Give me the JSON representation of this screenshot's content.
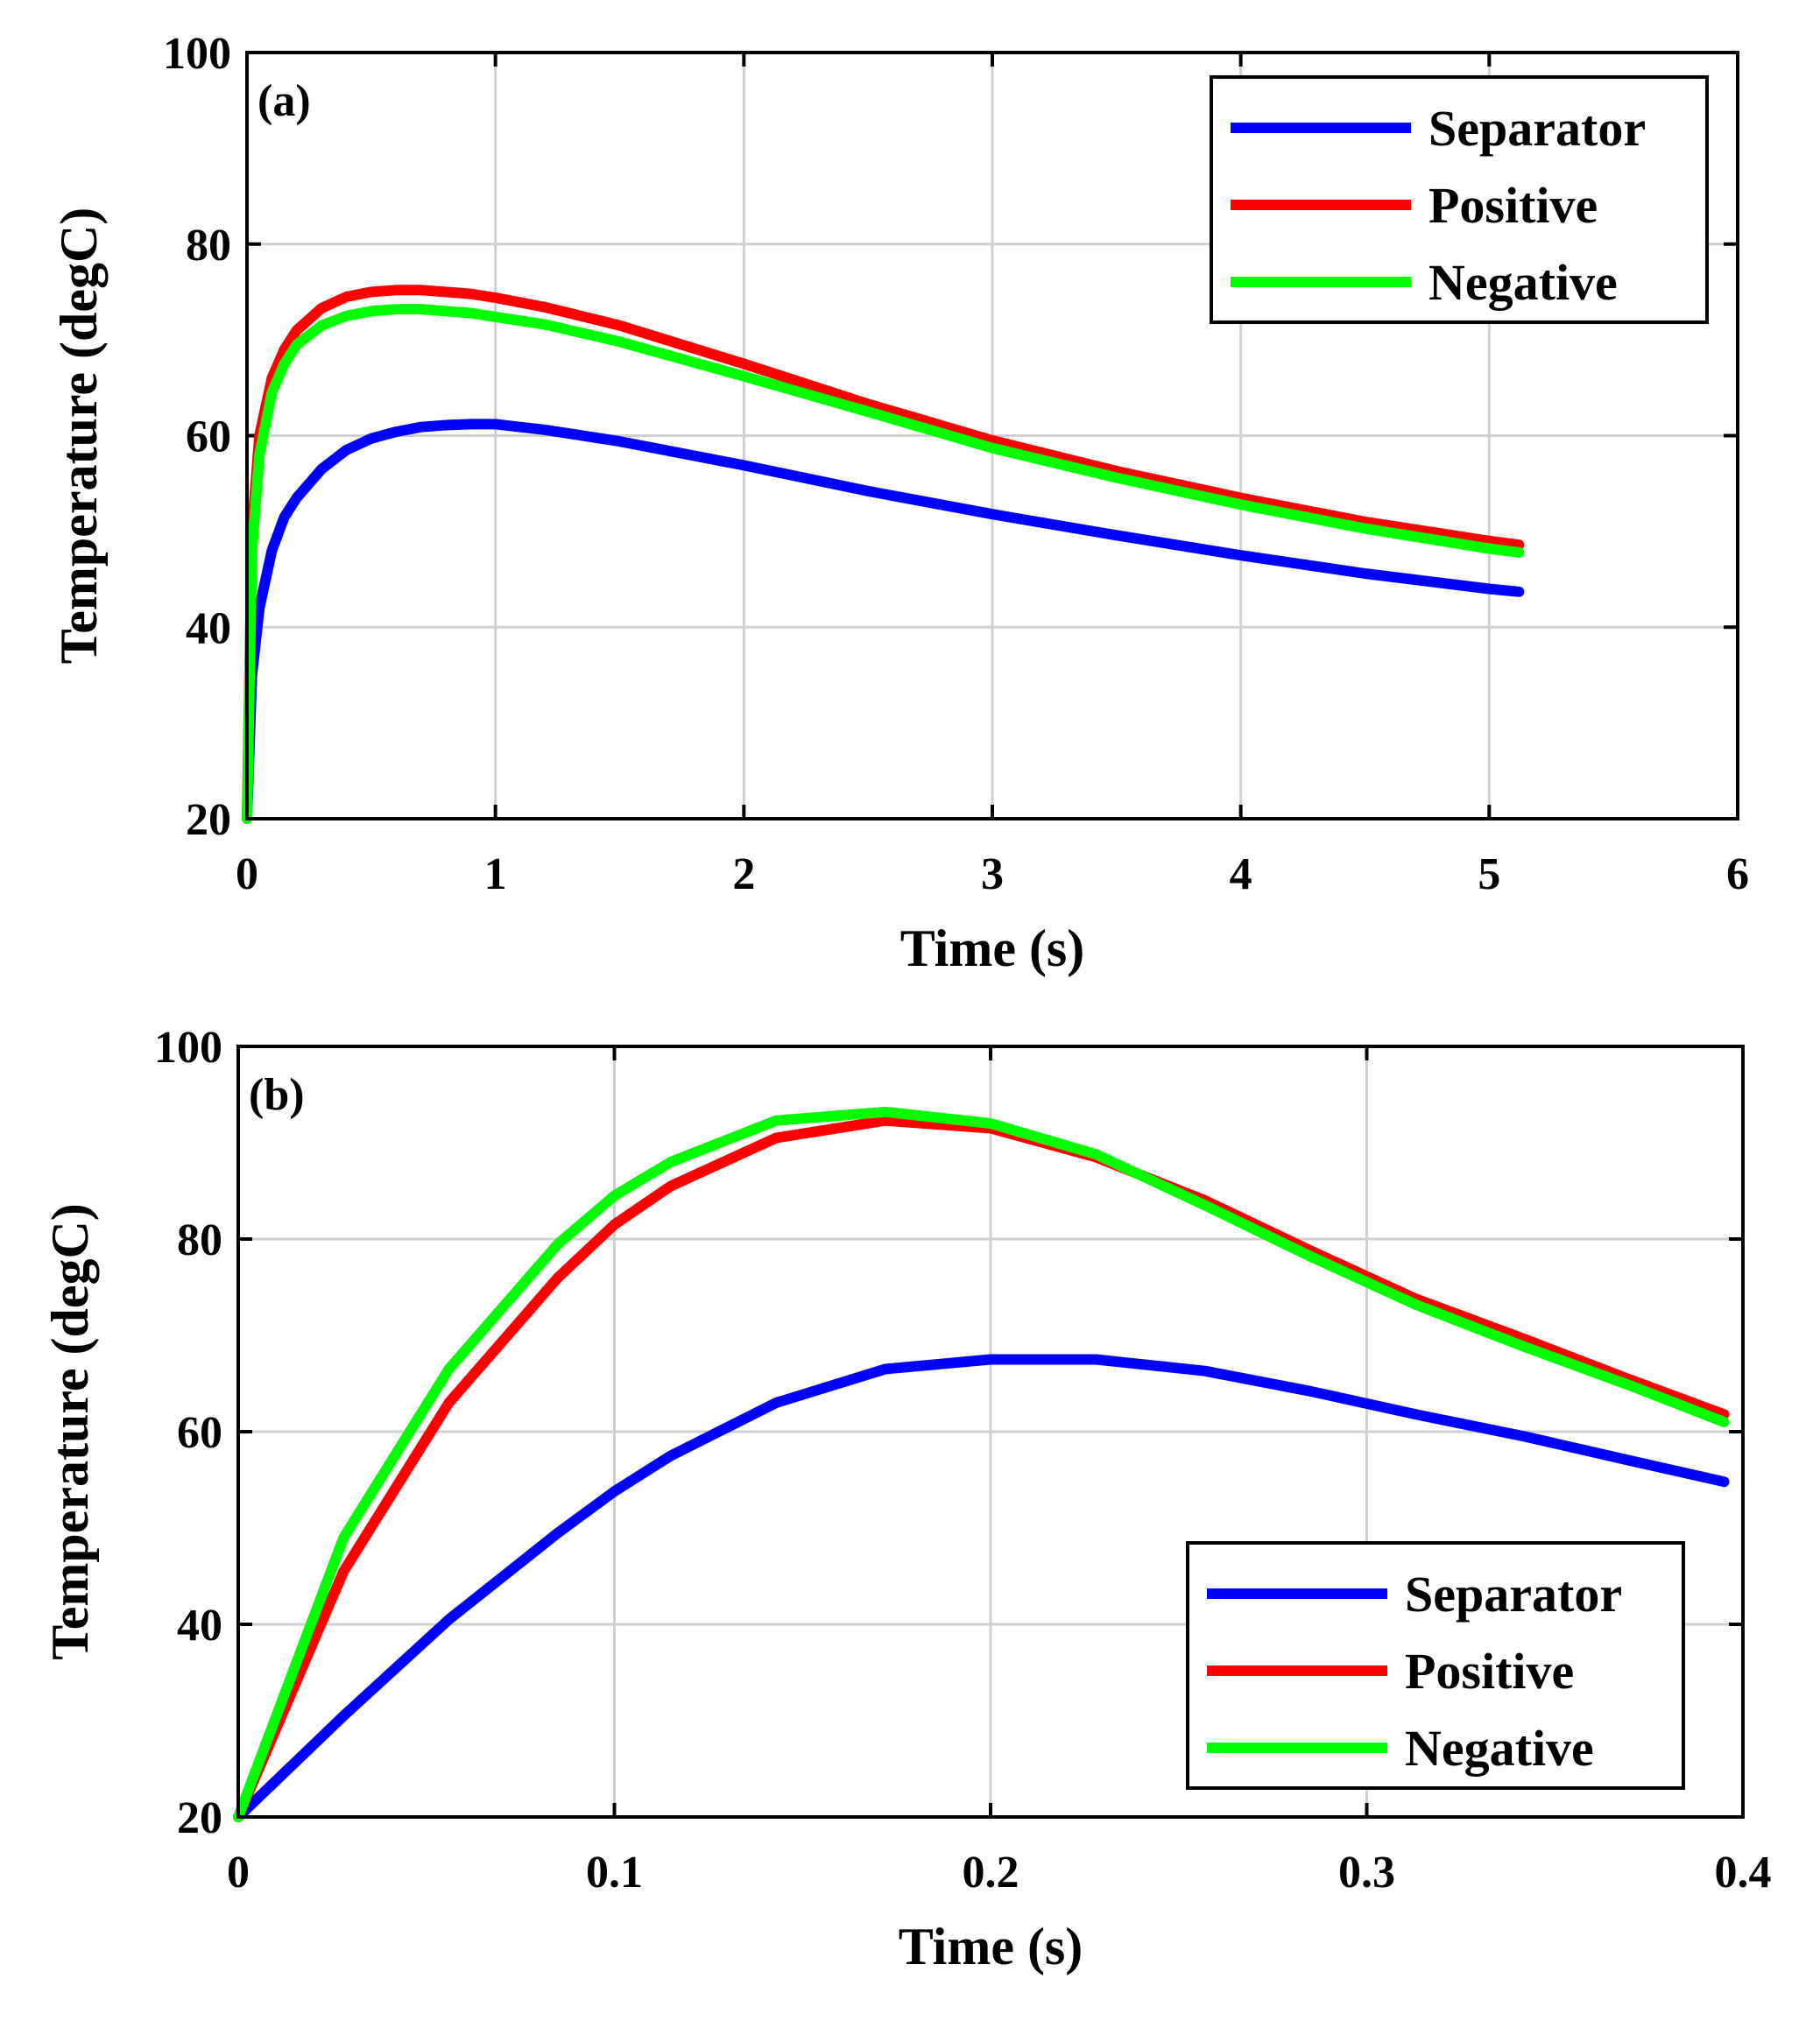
{
  "chart_data": [
    {
      "type": "line",
      "panel_label": "(a)",
      "xlabel": "Time (s)",
      "ylabel": "Temperature (degC)",
      "xlim": [
        0,
        6
      ],
      "ylim": [
        20,
        100
      ],
      "xticks": [
        0,
        1,
        2,
        3,
        4,
        5,
        6
      ],
      "xtick_labels": [
        "0",
        "1",
        "2",
        "3",
        "4",
        "5",
        "6"
      ],
      "yticks": [
        20,
        40,
        60,
        80,
        100
      ],
      "ytick_labels": [
        "20",
        "40",
        "60",
        "80",
        "100"
      ],
      "grid": true,
      "legend_position": "top-right",
      "series": [
        {
          "name": "Separator",
          "color": "#0000ff",
          "x": [
            0,
            0.02,
            0.05,
            0.1,
            0.15,
            0.2,
            0.3,
            0.4,
            0.5,
            0.6,
            0.7,
            0.8,
            0.9,
            1.0,
            1.2,
            1.5,
            2.0,
            2.5,
            3.0,
            3.5,
            4.0,
            4.5,
            5.0,
            5.12
          ],
          "y": [
            20,
            35,
            42,
            48,
            51.5,
            53.5,
            56.5,
            58.5,
            59.7,
            60.4,
            60.9,
            61.1,
            61.2,
            61.2,
            60.6,
            59.4,
            56.9,
            54.2,
            51.8,
            49.6,
            47.5,
            45.6,
            44.0,
            43.7
          ]
        },
        {
          "name": "Positive",
          "color": "#ff0000",
          "x": [
            0,
            0.02,
            0.05,
            0.1,
            0.15,
            0.2,
            0.3,
            0.4,
            0.5,
            0.6,
            0.7,
            0.8,
            0.9,
            1.0,
            1.2,
            1.5,
            2.0,
            2.5,
            3.0,
            3.5,
            4.0,
            4.5,
            5.0,
            5.12
          ],
          "y": [
            20,
            50,
            60,
            66,
            69,
            71,
            73.3,
            74.5,
            75,
            75.2,
            75.2,
            75,
            74.8,
            74.4,
            73.4,
            71.5,
            67.5,
            63.3,
            59.5,
            56.3,
            53.5,
            51.0,
            49.0,
            48.6
          ]
        },
        {
          "name": "Negative",
          "color": "#00ff00",
          "x": [
            0,
            0.02,
            0.05,
            0.1,
            0.15,
            0.2,
            0.3,
            0.4,
            0.5,
            0.6,
            0.7,
            0.8,
            0.9,
            1.0,
            1.2,
            1.5,
            2.0,
            2.5,
            3.0,
            3.5,
            4.0,
            4.5,
            5.0,
            5.12
          ],
          "y": [
            20,
            48,
            58,
            64.5,
            67.5,
            69.5,
            71.5,
            72.5,
            73,
            73.2,
            73.2,
            73,
            72.8,
            72.4,
            71.6,
            69.8,
            66.2,
            62.5,
            58.7,
            55.6,
            52.8,
            50.3,
            48.2,
            47.8
          ]
        }
      ]
    },
    {
      "type": "line",
      "panel_label": "(b)",
      "xlabel": "Time (s)",
      "ylabel": "Temperature (degC)",
      "xlim": [
        0,
        0.4
      ],
      "ylim": [
        20,
        100
      ],
      "xticks": [
        0,
        0.1,
        0.2,
        0.3,
        0.4
      ],
      "xtick_labels": [
        "0",
        "0.1",
        "0.2",
        "0.3",
        "0.4"
      ],
      "yticks": [
        20,
        40,
        60,
        80,
        100
      ],
      "ytick_labels": [
        "20",
        "40",
        "60",
        "80",
        "100"
      ],
      "grid": true,
      "legend_position": "bottom-right",
      "series": [
        {
          "name": "Separator",
          "color": "#0000ff",
          "x": [
            0,
            0.028,
            0.056,
            0.085,
            0.1,
            0.115,
            0.143,
            0.172,
            0.2,
            0.228,
            0.257,
            0.285,
            0.313,
            0.342,
            0.37,
            0.395
          ],
          "y": [
            20,
            30.5,
            40.5,
            49.5,
            53.8,
            57.5,
            63,
            66.5,
            67.5,
            67.5,
            66.3,
            64.2,
            61.8,
            59.5,
            57,
            54.8
          ]
        },
        {
          "name": "Positive",
          "color": "#ff0000",
          "x": [
            0,
            0.028,
            0.056,
            0.085,
            0.1,
            0.115,
            0.143,
            0.172,
            0.2,
            0.228,
            0.257,
            0.285,
            0.313,
            0.342,
            0.37,
            0.395
          ],
          "y": [
            20,
            45.5,
            63,
            76,
            81.5,
            85.5,
            90.5,
            92.3,
            91.5,
            88.5,
            84,
            78.8,
            73.8,
            69.6,
            65.4,
            61.8
          ]
        },
        {
          "name": "Negative",
          "color": "#00ff00",
          "x": [
            0,
            0.028,
            0.056,
            0.085,
            0.1,
            0.115,
            0.143,
            0.172,
            0.2,
            0.228,
            0.257,
            0.285,
            0.313,
            0.342,
            0.37,
            0.395
          ],
          "y": [
            20,
            49,
            66.5,
            79.5,
            84.5,
            88,
            92.3,
            93.2,
            92,
            88.8,
            83.5,
            78.2,
            73.2,
            68.8,
            64.8,
            61.0
          ]
        }
      ]
    }
  ]
}
